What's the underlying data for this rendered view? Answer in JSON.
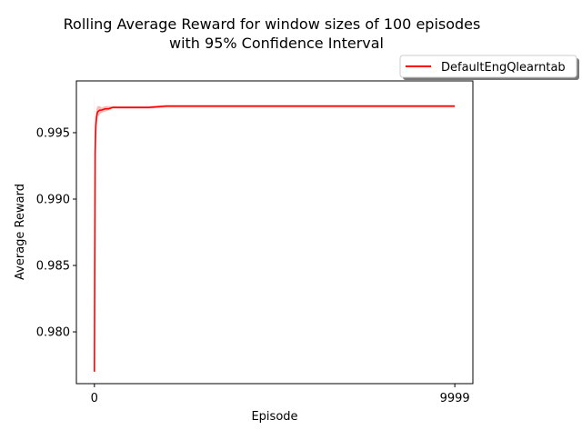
{
  "chart_data": {
    "type": "line",
    "title": "Rolling Average Reward for window sizes of 100 episodes\nwith 95% Confidence Interval",
    "title_lines": [
      "Rolling Average Reward for window sizes of 100 episodes",
      "with 95% Confidence Interval"
    ],
    "xlabel": "Episode",
    "ylabel": "Average Reward",
    "x_ticks": [
      0,
      9999
    ],
    "x_tick_labels": [
      "0",
      "9999"
    ],
    "y_ticks": [
      0.98,
      0.985,
      0.99,
      0.995
    ],
    "y_tick_labels": [
      "0.980",
      "0.985",
      "0.990",
      "0.995"
    ],
    "xlim": [
      -500,
      10500
    ],
    "ylim": [
      0.9761,
      0.9989
    ],
    "grid": false,
    "legend": {
      "placement": "top-right, outside axes",
      "entries": [
        "DefaultEngQlearntab"
      ]
    },
    "colors": {
      "line": "#ff0000",
      "band": "#f4a6a0"
    },
    "series": [
      {
        "name": "DefaultEngQlearntab",
        "x": [
          0,
          20,
          40,
          60,
          80,
          100,
          150,
          200,
          300,
          400,
          500,
          700,
          1000,
          1500,
          2000,
          3000,
          4000,
          5000,
          6000,
          7000,
          8000,
          9000,
          9999
        ],
        "y": [
          0.977,
          0.9935,
          0.9955,
          0.9962,
          0.9965,
          0.9966,
          0.9967,
          0.9967,
          0.9968,
          0.9968,
          0.9969,
          0.9969,
          0.9969,
          0.9969,
          0.997,
          0.997,
          0.997,
          0.997,
          0.997,
          0.997,
          0.997,
          0.997,
          0.997
        ],
        "ci_lower": [
          0.9768,
          0.9925,
          0.9947,
          0.9956,
          0.996,
          0.9962,
          0.9964,
          0.9965,
          0.9966,
          0.9967,
          0.9968,
          0.9968,
          0.9968,
          0.9968,
          0.9969,
          0.9969,
          0.9969,
          0.9969,
          0.9969,
          0.9969,
          0.9969,
          0.9969,
          0.9969
        ],
        "ci_upper": [
          0.998,
          0.9945,
          0.9963,
          0.9968,
          0.997,
          0.997,
          0.997,
          0.9969,
          0.997,
          0.997,
          0.997,
          0.997,
          0.997,
          0.997,
          0.9971,
          0.9971,
          0.9971,
          0.9971,
          0.9971,
          0.9971,
          0.9971,
          0.9971,
          0.9971
        ]
      }
    ]
  }
}
